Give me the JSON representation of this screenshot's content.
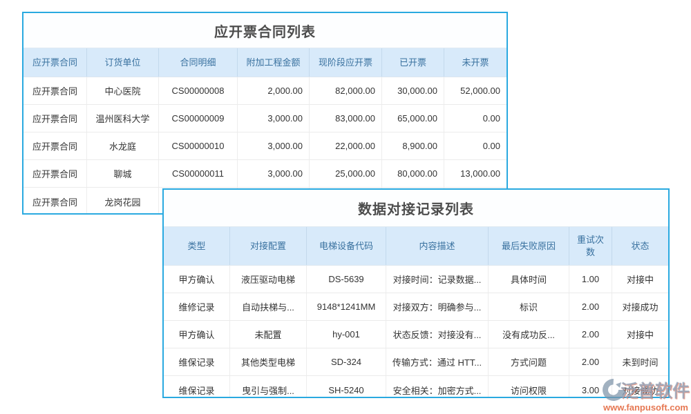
{
  "colors": {
    "accent_border": "#29a9e0",
    "header_bg": "#d8eafa",
    "header_text": "#39719f",
    "title_text": "#4c4c4c",
    "body_text": "#333333",
    "watermark_orange": "#e5714a",
    "watermark_gray_blue": "#94a3b8"
  },
  "invoice_table": {
    "title": "应开票合同列表",
    "columns": [
      "应开票合同",
      "订货单位",
      "合同明细",
      "附加工程金额",
      "现阶段应开票",
      "已开票",
      "未开票"
    ],
    "rows": [
      [
        "应开票合同",
        "中心医院",
        "CS00000008",
        "2,000.00",
        "82,000.00",
        "30,000.00",
        "52,000.00"
      ],
      [
        "应开票合同",
        "温州医科大学",
        "CS00000009",
        "3,000.00",
        "83,000.00",
        "65,000.00",
        "0.00"
      ],
      [
        "应开票合同",
        "水龙庭",
        "CS00000010",
        "3,000.00",
        "22,000.00",
        "8,900.00",
        "0.00"
      ],
      [
        "应开票合同",
        "聊城",
        "CS00000011",
        "3,000.00",
        "25,000.00",
        "80,000.00",
        "13,000.00"
      ],
      [
        "应开票合同",
        "龙岗花园",
        "",
        "",
        "",
        "",
        ""
      ]
    ]
  },
  "docking_table": {
    "title": "数据对接记录列表",
    "columns": [
      "类型",
      "对接配置",
      "电梯设备代码",
      "内容描述",
      "最后失败原因",
      "重试次数",
      "状态"
    ],
    "rows": [
      [
        "甲方确认",
        "液压驱动电梯",
        "DS-5639",
        "对接时间：记录数据...",
        "具体时间",
        "1.00",
        "对接中"
      ],
      [
        "维修记录",
        "自动扶梯与...",
        "9148*1241MM",
        "对接双方：明确参与...",
        "标识",
        "2.00",
        "对接成功"
      ],
      [
        "甲方确认",
        "未配置",
        "hy-001",
        "状态反馈：对接没有...",
        "没有成功反...",
        "2.00",
        "对接中"
      ],
      [
        "维保记录",
        "其他类型电梯",
        "SD-324",
        "传输方式：通过 HTT...",
        "方式问题",
        "2.00",
        "未到时间"
      ],
      [
        "维保记录",
        "曳引与强制...",
        "SH-5240",
        "安全相关：加密方式...",
        "访问权限",
        "3.00",
        "对接成功"
      ]
    ]
  },
  "watermark": {
    "brand": "泛普软件",
    "url": "www.fanpusoft.com"
  }
}
